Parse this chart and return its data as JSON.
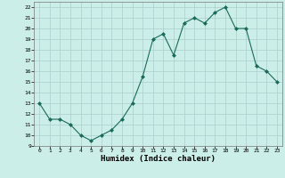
{
  "x": [
    0,
    1,
    2,
    3,
    4,
    5,
    6,
    7,
    8,
    9,
    10,
    11,
    12,
    13,
    14,
    15,
    16,
    17,
    18,
    19,
    20,
    21,
    22,
    23
  ],
  "y": [
    13,
    11.5,
    11.5,
    11,
    10,
    9.5,
    10,
    10.5,
    11.5,
    13,
    15.5,
    19,
    19.5,
    17.5,
    20.5,
    21,
    20.5,
    21.5,
    22,
    20,
    20,
    16.5,
    16,
    15
  ],
  "line_color": "#1a6b5a",
  "marker": "D",
  "marker_size": 2.0,
  "bg_color": "#cceee8",
  "grid_color": "#aacccc",
  "xlabel": "Humidex (Indice chaleur)",
  "xlim": [
    -0.5,
    23.5
  ],
  "ylim": [
    9,
    22.5
  ],
  "yticks": [
    9,
    10,
    11,
    12,
    13,
    14,
    15,
    16,
    17,
    18,
    19,
    20,
    21,
    22
  ],
  "xticks": [
    0,
    1,
    2,
    3,
    4,
    5,
    6,
    7,
    8,
    9,
    10,
    11,
    12,
    13,
    14,
    15,
    16,
    17,
    18,
    19,
    20,
    21,
    22,
    23
  ]
}
